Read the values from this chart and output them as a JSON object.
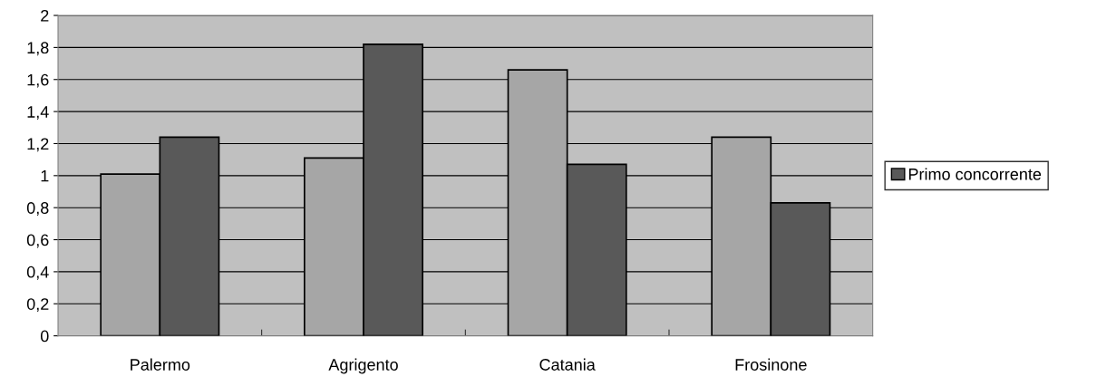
{
  "chart_data": {
    "type": "bar",
    "categories": [
      "Palermo",
      "Agrigento",
      "Catania",
      "Frosinone"
    ],
    "series": [
      {
        "color": "#a6a6a6",
        "values": [
          1.01,
          1.11,
          1.66,
          1.24
        ]
      },
      {
        "name": "Primo concorrente",
        "color": "#595959",
        "values": [
          1.24,
          1.82,
          1.07,
          0.83
        ]
      }
    ],
    "ylim": [
      0,
      2
    ],
    "yticks": [
      0,
      {
        "value": 0.2,
        "label": "0,2"
      },
      {
        "value": 0.4,
        "label": "0,4"
      },
      {
        "value": 0.6,
        "label": "0,6"
      },
      {
        "value": 0.8,
        "label": "0,8"
      },
      1,
      {
        "value": 1.2,
        "label": "1,2"
      },
      {
        "value": 1.4,
        "label": "1,4"
      },
      {
        "value": 1.6,
        "label": "1,6"
      },
      {
        "value": 1.8,
        "label": "1,8"
      },
      2
    ],
    "grid": "y",
    "legend": "right"
  }
}
